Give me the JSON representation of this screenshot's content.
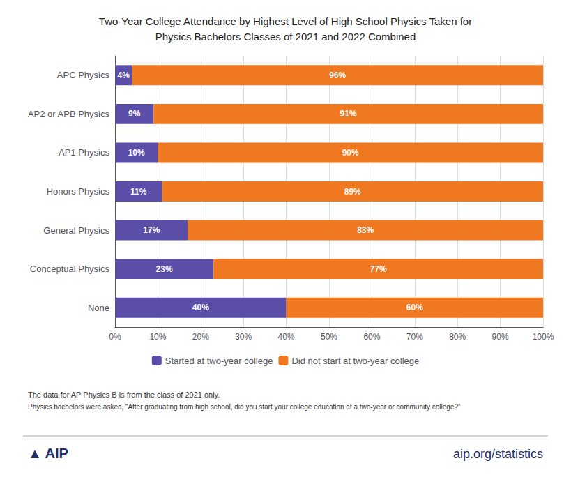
{
  "chart_data": {
    "type": "bar",
    "orientation": "horizontal",
    "stacked": true,
    "title": "Two-Year College Attendance by Highest Level of High School Physics Taken for\nPhysics Bachelors Classes of 2021 and 2022 Combined",
    "categories": [
      "APC Physics",
      "AP2 or APB Physics",
      "AP1 Physics",
      "Honors Physics",
      "General Physics",
      "Conceptual Physics",
      "None"
    ],
    "series": [
      {
        "name": "Started at two-year college",
        "color": "#5B4EA8",
        "values": [
          4,
          9,
          10,
          11,
          17,
          23,
          40
        ],
        "value_labels": [
          "4%",
          "9%",
          "10%",
          "11%",
          "17%",
          "23%",
          "40%"
        ]
      },
      {
        "name": "Did not start at two-year college",
        "color": "#F07820",
        "values": [
          96,
          91,
          90,
          89,
          83,
          77,
          60
        ],
        "value_labels": [
          "96%",
          "91%",
          "90%",
          "89%",
          "83%",
          "77%",
          "60%"
        ]
      }
    ],
    "xlim": [
      0,
      100
    ],
    "xticks": [
      {
        "value": 0,
        "label": "0%"
      },
      {
        "value": 10,
        "label": "10%"
      },
      {
        "value": 20,
        "label": "20%"
      },
      {
        "value": 30,
        "label": "30%"
      },
      {
        "value": 40,
        "label": "40%"
      },
      {
        "value": 50,
        "label": "50%"
      },
      {
        "value": 60,
        "label": "60%"
      },
      {
        "value": 70,
        "label": "70%"
      },
      {
        "value": 80,
        "label": "80%"
      },
      {
        "value": 90,
        "label": "90%"
      },
      {
        "value": 100,
        "label": "100%"
      }
    ],
    "grid": true,
    "data_labels": true,
    "legend": "bottom",
    "annotations": [
      "The data for AP Physics B is from the class of 2021 only.",
      "Physics bachelors were asked, “After graduating from high school, did you start your college education at a two-year or community college?”",
      "▲ AIP",
      "aip.org/statistics"
    ]
  }
}
